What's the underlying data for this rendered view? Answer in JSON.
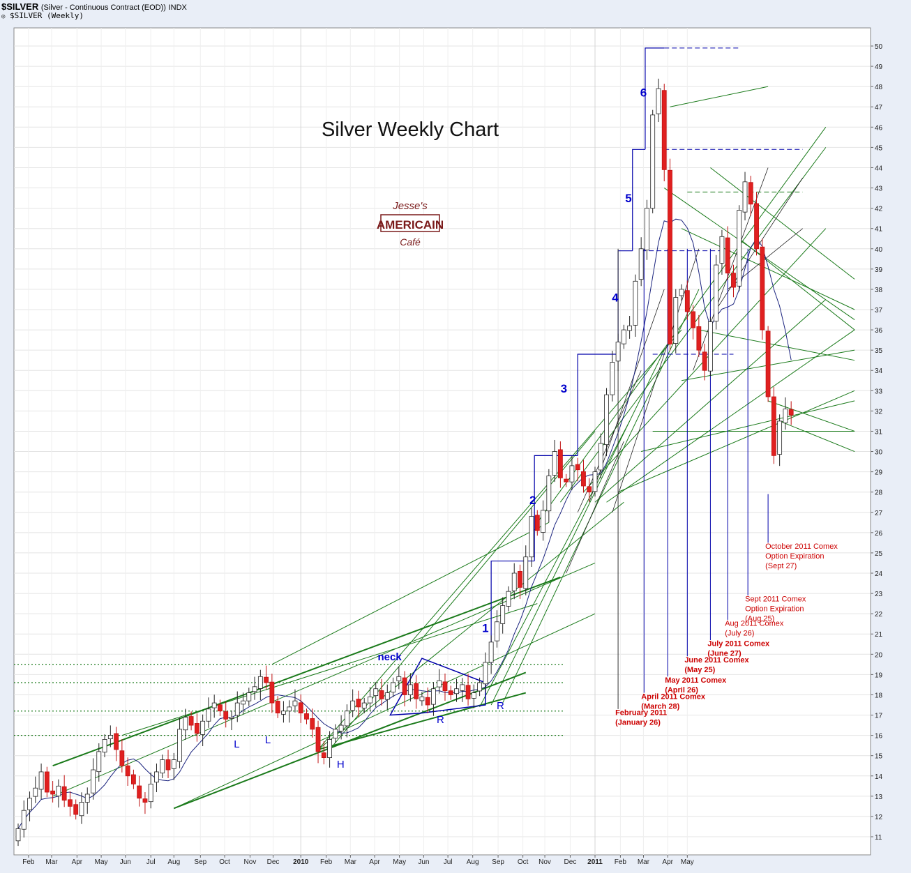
{
  "header": {
    "symbol": "$SILVER",
    "description": "(Silver - Continuous Contract (EOD))",
    "exchange": "INDX",
    "series_label": "$SILVER (Weekly)"
  },
  "colors": {
    "up_fill": "#ffffff",
    "down_fill": "#e02020",
    "trend_lines": "#1a7a1a",
    "marker_lines": "#0000aa",
    "annotation_red": "#cc0000",
    "wave_labels": "#0000cc"
  },
  "watermark": {
    "line1": "Jesse's",
    "line2": "AMERICAIN",
    "line3": "Café"
  },
  "chart_data": {
    "type": "candlestick",
    "title": "Silver Weekly Chart",
    "ylim": [
      10.5,
      50.5
    ],
    "y_ticks": [
      11,
      12,
      13,
      14,
      15,
      16,
      17,
      18,
      19,
      20,
      21,
      22,
      23,
      24,
      25,
      26,
      27,
      28,
      29,
      30,
      31,
      32,
      33,
      34,
      35,
      36,
      37,
      38,
      39,
      40,
      41,
      42,
      43,
      44,
      45,
      46,
      47,
      48,
      49,
      50
    ],
    "x_range_weeks": [
      0,
      145
    ],
    "x_labels": [
      {
        "label": "Feb",
        "week": 1.8
      },
      {
        "label": "Mar",
        "week": 5.8
      },
      {
        "label": "Apr",
        "week": 10.2
      },
      {
        "label": "May",
        "week": 14.4
      },
      {
        "label": "Jun",
        "week": 18.6
      },
      {
        "label": "Jul",
        "week": 23.0
      },
      {
        "label": "Aug",
        "week": 27.0
      },
      {
        "label": "Sep",
        "week": 31.6
      },
      {
        "label": "Oct",
        "week": 35.8
      },
      {
        "label": "Nov",
        "week": 40.2
      },
      {
        "label": "Dec",
        "week": 44.2
      },
      {
        "label": "2010",
        "week": 49.0,
        "bold": true
      },
      {
        "label": "Feb",
        "week": 53.4
      },
      {
        "label": "Mar",
        "week": 57.6
      },
      {
        "label": "Apr",
        "week": 61.8
      },
      {
        "label": "May",
        "week": 66.1
      },
      {
        "label": "Jun",
        "week": 70.3
      },
      {
        "label": "Jul",
        "week": 74.5
      },
      {
        "label": "Aug",
        "week": 78.8
      },
      {
        "label": "Sep",
        "week": 83.2
      },
      {
        "label": "Oct",
        "week": 87.5
      },
      {
        "label": "Nov",
        "week": 91.3
      },
      {
        "label": "Dec",
        "week": 95.7
      },
      {
        "label": "2011",
        "week": 100.0,
        "bold": true
      },
      {
        "label": "Feb",
        "week": 104.4
      },
      {
        "label": "Mar",
        "week": 108.4
      },
      {
        "label": "Apr",
        "week": 112.6
      },
      {
        "label": "May",
        "week": 116.0
      }
    ],
    "close": [
      11.4,
      12.3,
      12.9,
      13.4,
      14.2,
      13.2,
      13.1,
      13.5,
      12.8,
      12.5,
      12.1,
      12.7,
      13.1,
      14.3,
      15.2,
      15.8,
      16.0,
      15.3,
      14.5,
      14.0,
      13.6,
      12.9,
      12.7,
      13.6,
      14.2,
      14.8,
      14.3,
      14.8,
      16.3,
      16.9,
      16.5,
      16.1,
      16.7,
      17.3,
      17.6,
      17.2,
      16.8,
      16.9,
      17.6,
      17.7,
      18.1,
      18.4,
      18.9,
      18.6,
      17.6,
      17.1,
      17.2,
      17.4,
      17.7,
      17.1,
      16.8,
      16.3,
      15.2,
      14.9,
      15.8,
      16.3,
      16.5,
      17.2,
      17.7,
      17.4,
      17.6,
      17.9,
      18.3,
      17.8,
      18.1,
      18.6,
      18.9,
      18.0,
      18.5,
      17.8,
      17.9,
      17.5,
      18.3,
      18.7,
      18.2,
      18.0,
      18.3,
      18.5,
      17.8,
      18.1,
      18.6,
      19.6,
      20.6,
      21.6,
      22.4,
      23.1,
      24.0,
      23.3,
      24.8,
      26.8,
      26.1,
      27.1,
      28.8,
      30.0,
      28.7,
      28.5,
      29.3,
      29.1,
      28.3,
      28.0,
      29.0,
      30.4,
      32.8,
      34.4,
      35.4,
      36.0,
      36.2,
      38.4,
      40.0,
      42.0,
      46.6,
      47.9,
      43.9,
      35.3,
      37.6,
      38.0,
      36.9,
      36.1,
      35.0,
      34.0,
      36.4,
      39.2,
      40.6,
      38.8,
      38.1,
      41.9,
      43.3,
      42.2,
      40.0,
      36.0,
      32.7,
      29.8,
      31.5,
      32.1,
      31.8
    ],
    "annotations": {
      "wave_labels": [
        {
          "text": "1",
          "week": 81.0,
          "y": 21.1
        },
        {
          "text": "2",
          "week": 89.2,
          "y": 27.4
        },
        {
          "text": "3",
          "week": 94.6,
          "y": 32.9
        },
        {
          "text": "4",
          "week": 103.5,
          "y": 37.4
        },
        {
          "text": "5",
          "week": 105.8,
          "y": 42.3
        },
        {
          "text": "6",
          "week": 108.4,
          "y": 47.5
        }
      ],
      "pattern_labels": [
        {
          "text": "L",
          "week": 37.9,
          "y": 15.4
        },
        {
          "text": "L",
          "week": 43.3,
          "y": 15.6
        },
        {
          "text": "H",
          "week": 55.9,
          "y": 14.4
        },
        {
          "text": "neck",
          "week": 64.4,
          "y": 19.7
        },
        {
          "text": "R",
          "week": 73.2,
          "y": 16.6
        },
        {
          "text": "R",
          "week": 83.6,
          "y": 17.3
        }
      ],
      "expirations": [
        {
          "line1": "February 2011",
          "line2": "(January 26)",
          "bold": true,
          "line_week": 104.0
        },
        {
          "line1": "April 2011 Comex",
          "line2": "(March 28)",
          "bold": true,
          "line_week": 108.5
        },
        {
          "line1": "May 2011 Comex",
          "line2": "(April 26)",
          "bold": true,
          "line_week": 112.6
        },
        {
          "line1": "June 2011 Comex",
          "line2": "(May 25)",
          "bold": true,
          "line_week": 116.0
        },
        {
          "line1": "July 2011 Comex",
          "line2": "(June 27)",
          "bold": true,
          "line_week": 120.0
        },
        {
          "line1": "Aug 2011 Comex",
          "line2": "(July 26)",
          "bold": false,
          "line_week": 123.0
        },
        {
          "line1": "Sept 2011 Comex",
          "line2": "Option Expiration",
          "line3": "(Aug 25)",
          "bold": false,
          "line_week": 126.5
        },
        {
          "line1": "October 2011 Comex",
          "line2": "Option Expiration",
          "line3": "(Sept 27)",
          "bold": false,
          "line_week": 130.0
        }
      ]
    }
  }
}
